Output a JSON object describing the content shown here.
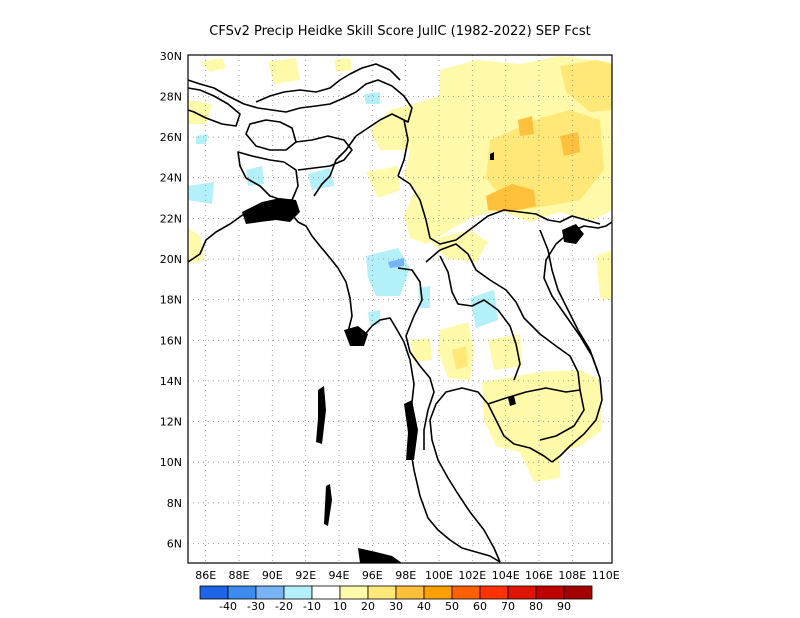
{
  "title": "CFSv2 Precip Heidke Skill Score JulIC (1982-2022) SEP Fcst",
  "map": {
    "lon_range": [
      86,
      110
    ],
    "lat_range": [
      5,
      30
    ],
    "lon_ticks": [
      "86E",
      "88E",
      "90E",
      "92E",
      "94E",
      "96E",
      "98E",
      "100E",
      "102E",
      "104E",
      "106E",
      "108E",
      "110E"
    ],
    "lat_ticks": [
      "6N",
      "8N",
      "10N",
      "12N",
      "14N",
      "16N",
      "18N",
      "20N",
      "22N",
      "24N",
      "26N",
      "28N",
      "30N"
    ],
    "grid": "dotted"
  },
  "colorbar": {
    "labels": [
      "-40",
      "-30",
      "-20",
      "-10",
      "10",
      "20",
      "30",
      "40",
      "50",
      "60",
      "70",
      "80",
      "90"
    ],
    "colors": [
      "#1e64e6",
      "#3c8cf0",
      "#78b4f5",
      "#b4f0fa",
      "#ffffff",
      "#fffaaa",
      "#ffe878",
      "#ffc03c",
      "#ffa000",
      "#ff6000",
      "#ff3200",
      "#e11400",
      "#c00000",
      "#a50000"
    ]
  },
  "colors": {
    "light_yellow": "#fffaaa",
    "yellow": "#ffe878",
    "orange": "#ffc03c",
    "light_blue": "#b4f0fa",
    "mid_blue": "#78b4f5",
    "land_outline": "#000000"
  }
}
